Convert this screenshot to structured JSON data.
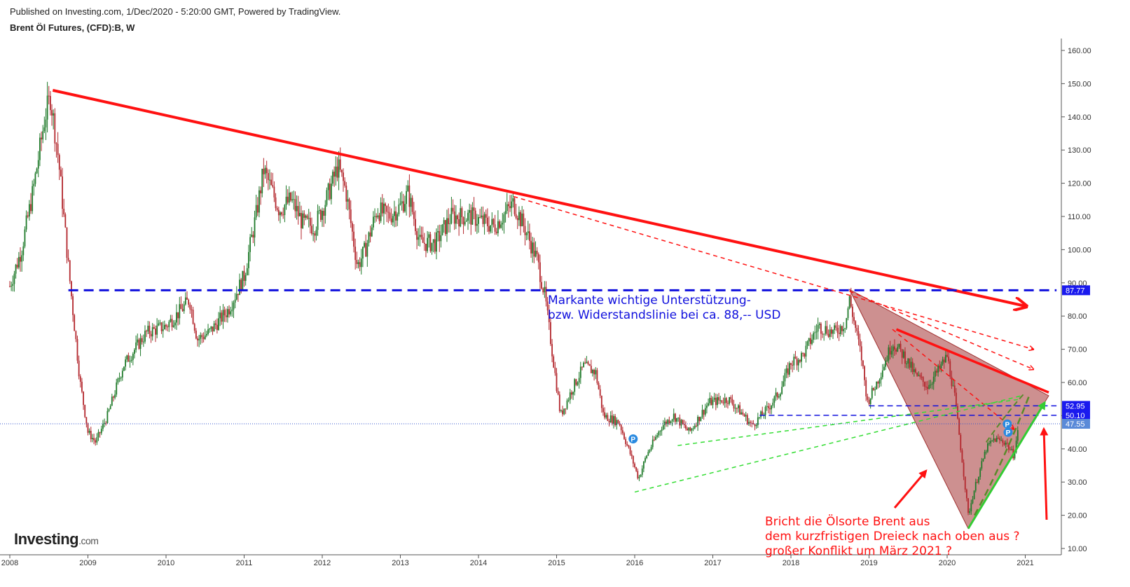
{
  "header": {
    "published": "Published on Investing.com, 1/Dec/2020 - 5:20:00 GMT, Powered by TradingView.",
    "symbol": "Brent Öl Futures, (CFD):B, W"
  },
  "logo": {
    "main": "Investing",
    "suffix": ".com"
  },
  "colors": {
    "up": "#1f7a2a",
    "down": "#b3272d",
    "trend": "#ff1111",
    "support": "#1010dd",
    "green_dash": "#33dd33",
    "triangle_fill": "#b25555",
    "label_bg": "#1a1aee",
    "price_bg": "#5a8ad8"
  },
  "chart_data": {
    "type": "candlestick",
    "interval": "W",
    "ylim": [
      7,
      163
    ],
    "y_ticks": [
      "10.00",
      "20.00",
      "30.00",
      "40.00",
      "50.00",
      "60.00",
      "70.00",
      "80.00",
      "90.00",
      "100.00",
      "110.00",
      "120.00",
      "130.00",
      "140.00",
      "150.00",
      "160.00"
    ],
    "x_ticks": [
      "2008",
      "2009",
      "2010",
      "2011",
      "2012",
      "2013",
      "2014",
      "2015",
      "2016",
      "2017",
      "2018",
      "2019",
      "2020",
      "2021"
    ],
    "price_path": [
      [
        2008.0,
        89
      ],
      [
        2008.15,
        100
      ],
      [
        2008.3,
        118
      ],
      [
        2008.45,
        140
      ],
      [
        2008.52,
        146
      ],
      [
        2008.62,
        128
      ],
      [
        2008.75,
        95
      ],
      [
        2008.9,
        60
      ],
      [
        2009.0,
        45
      ],
      [
        2009.1,
        42
      ],
      [
        2009.25,
        50
      ],
      [
        2009.45,
        65
      ],
      [
        2009.6,
        70
      ],
      [
        2009.75,
        75
      ],
      [
        2010.0,
        77
      ],
      [
        2010.2,
        82
      ],
      [
        2010.3,
        85
      ],
      [
        2010.4,
        73
      ],
      [
        2010.55,
        75
      ],
      [
        2010.8,
        82
      ],
      [
        2011.0,
        92
      ],
      [
        2011.15,
        110
      ],
      [
        2011.25,
        124
      ],
      [
        2011.45,
        112
      ],
      [
        2011.6,
        115
      ],
      [
        2011.75,
        108
      ],
      [
        2011.9,
        107
      ],
      [
        2012.05,
        115
      ],
      [
        2012.2,
        125
      ],
      [
        2012.3,
        118
      ],
      [
        2012.45,
        95
      ],
      [
        2012.55,
        100
      ],
      [
        2012.7,
        112
      ],
      [
        2012.85,
        110
      ],
      [
        2013.0,
        113
      ],
      [
        2013.1,
        117
      ],
      [
        2013.25,
        102
      ],
      [
        2013.45,
        102
      ],
      [
        2013.65,
        110
      ],
      [
        2013.9,
        110
      ],
      [
        2014.2,
        107
      ],
      [
        2014.45,
        114
      ],
      [
        2014.6,
        106
      ],
      [
        2014.75,
        97
      ],
      [
        2014.85,
        86
      ],
      [
        2014.95,
        68
      ],
      [
        2015.05,
        50
      ],
      [
        2015.2,
        58
      ],
      [
        2015.35,
        65
      ],
      [
        2015.5,
        63
      ],
      [
        2015.6,
        50
      ],
      [
        2015.8,
        48
      ],
      [
        2015.95,
        38
      ],
      [
        2016.05,
        31
      ],
      [
        2016.15,
        38
      ],
      [
        2016.35,
        47
      ],
      [
        2016.5,
        50
      ],
      [
        2016.7,
        45
      ],
      [
        2016.95,
        54
      ],
      [
        2017.2,
        55
      ],
      [
        2017.4,
        50
      ],
      [
        2017.5,
        47
      ],
      [
        2017.7,
        52
      ],
      [
        2017.85,
        57
      ],
      [
        2018.0,
        66
      ],
      [
        2018.15,
        68
      ],
      [
        2018.35,
        77
      ],
      [
        2018.55,
        75
      ],
      [
        2018.7,
        78
      ],
      [
        2018.75,
        85
      ],
      [
        2018.9,
        68
      ],
      [
        2018.98,
        54
      ],
      [
        2019.1,
        60
      ],
      [
        2019.3,
        72
      ],
      [
        2019.45,
        68
      ],
      [
        2019.6,
        62
      ],
      [
        2019.75,
        59
      ],
      [
        2019.9,
        64
      ],
      [
        2020.0,
        68
      ],
      [
        2020.1,
        55
      ],
      [
        2020.2,
        35
      ],
      [
        2020.27,
        20
      ],
      [
        2020.35,
        28
      ],
      [
        2020.5,
        40
      ],
      [
        2020.6,
        43
      ],
      [
        2020.75,
        42
      ],
      [
        2020.85,
        38
      ],
      [
        2020.92,
        47
      ]
    ],
    "price_labels": [
      {
        "value": 87.77,
        "label": "87.77",
        "kind": "support"
      },
      {
        "value": 52.95,
        "label": "52.95",
        "kind": "support"
      },
      {
        "value": 50.1,
        "label": "50.10",
        "kind": "support"
      },
      {
        "value": 47.55,
        "label": "47.55",
        "kind": "last"
      }
    ],
    "lines": [
      {
        "name": "long-downtrend",
        "style": "solid",
        "from": [
          2008.55,
          148
        ],
        "to": [
          2021.0,
          83
        ],
        "arrow": true
      },
      {
        "name": "support-88",
        "style": "dash",
        "from": [
          2008.75,
          87.77
        ],
        "to": [
          2021.4,
          87.77
        ]
      },
      {
        "name": "dash-downtrend-1",
        "style": "dash",
        "from": [
          2014.45,
          116
        ],
        "to": [
          2021.1,
          70
        ],
        "arrow": true
      },
      {
        "name": "dash-downtrend-2",
        "style": "dash",
        "from": [
          2018.75,
          87.5
        ],
        "to": [
          2021.1,
          64
        ],
        "arrow": true
      },
      {
        "name": "dash-downtrend-3",
        "style": "dash",
        "from": [
          2019.3,
          76
        ],
        "to": [
          2020.85,
          46
        ],
        "arrow": true
      },
      {
        "name": "triangle-upper",
        "style": "solid",
        "from": [
          2019.35,
          76
        ],
        "to": [
          2021.3,
          57
        ]
      },
      {
        "name": "support-53",
        "style": "dash",
        "from": [
          2019.0,
          52.95
        ],
        "to": [
          2021.4,
          52.95
        ]
      },
      {
        "name": "support-50",
        "style": "dash",
        "from": [
          2017.6,
          50.1
        ],
        "to": [
          2021.4,
          50.1
        ]
      },
      {
        "name": "green-lower-1",
        "style": "dash",
        "from": [
          2016.0,
          27
        ],
        "to": [
          2020.95,
          56
        ]
      },
      {
        "name": "green-lower-2",
        "style": "dash",
        "from": [
          2016.55,
          41
        ],
        "to": [
          2020.95,
          55
        ]
      },
      {
        "name": "green-breakout",
        "style": "solid",
        "from": [
          2020.27,
          16
        ],
        "to": [
          2021.25,
          54
        ],
        "arrow": true
      }
    ],
    "triangle": [
      [
        2018.75,
        88
      ],
      [
        2021.3,
        56
      ],
      [
        2020.27,
        16
      ]
    ],
    "pivot_markers": [
      {
        "x": 2015.98,
        "y": 43,
        "label": "P"
      },
      {
        "x": 2020.77,
        "y": 47.5,
        "label": "P"
      },
      {
        "x": 2020.78,
        "y": 45,
        "label": "P"
      }
    ],
    "annotations": {
      "support_note": [
        "Markante wichtige Unterstützung-",
        "bzw. Widerstandslinie bei ca. 88,-- USD"
      ],
      "breakout_note": [
        "Bricht die Ölsorte Brent aus",
        "dem kurzfristigen Dreieck nach oben aus ?",
        "großer Konflikt um März 2021 ?"
      ]
    }
  }
}
